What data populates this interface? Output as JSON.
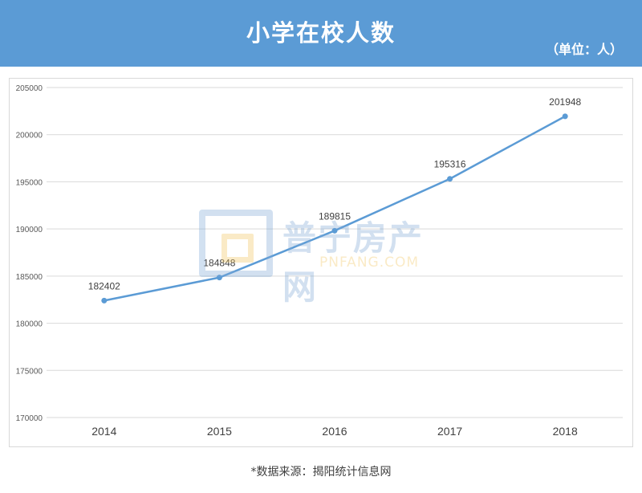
{
  "header": {
    "title": "小学在校人数",
    "unit": "（单位：人）"
  },
  "watermark": {
    "brand": "普宁房产网",
    "site": "PNFANG.COM"
  },
  "source": "*数据来源：揭阳统计信息网",
  "colors": {
    "header_bg": "#5b9bd5",
    "line": "#5b9bd5",
    "grid": "#d9d9d9"
  },
  "chart_data": {
    "type": "line",
    "title": "小学在校人数",
    "categories": [
      "2014",
      "2015",
      "2016",
      "2017",
      "2018"
    ],
    "series": [
      {
        "values": [
          182402,
          184848,
          189815,
          195316,
          201948
        ]
      }
    ],
    "data_labels": [
      "182402",
      "184848",
      "189815",
      "195316",
      "201948"
    ],
    "yticks": [
      170000,
      175000,
      180000,
      185000,
      190000,
      195000,
      200000,
      205000
    ],
    "ylim": [
      170000,
      205000
    ],
    "grid": true,
    "legend": "none"
  }
}
